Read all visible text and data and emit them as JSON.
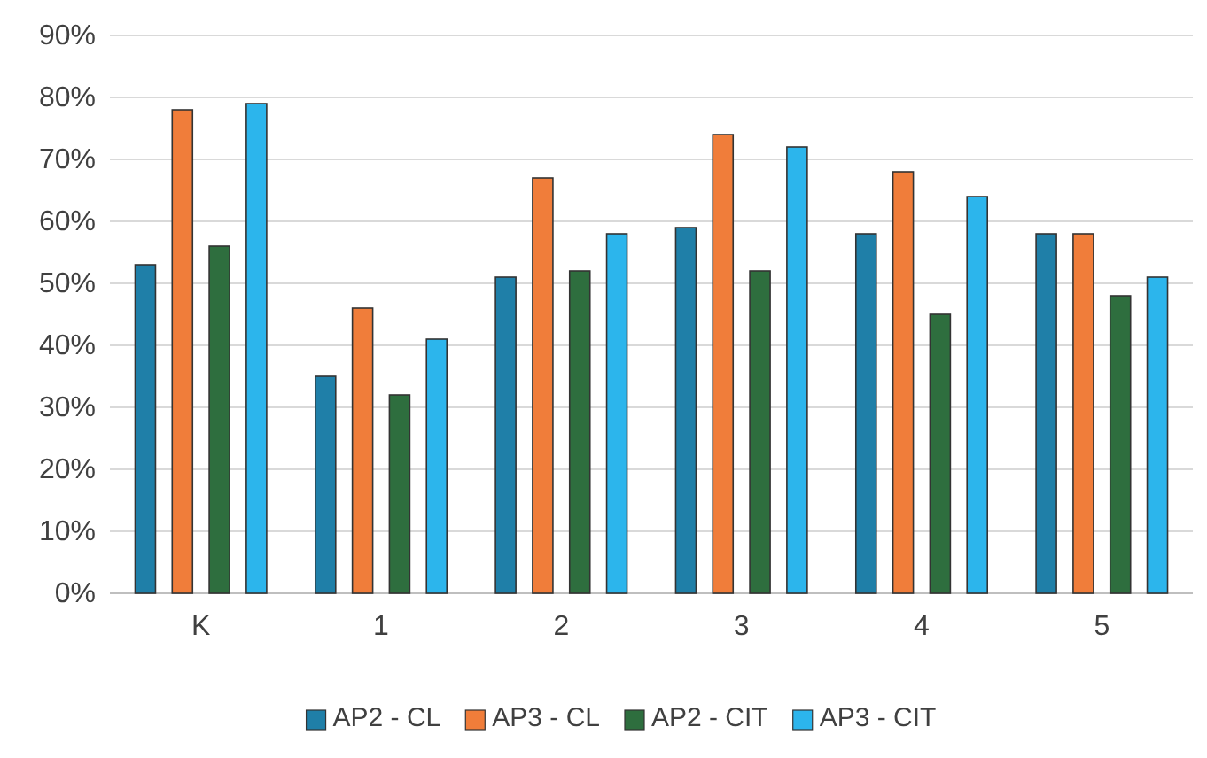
{
  "chart_data": {
    "type": "bar",
    "categories": [
      "K",
      "1",
      "2",
      "3",
      "4",
      "5"
    ],
    "series": [
      {
        "name": "AP2 - CL",
        "color": "#1f7fa8",
        "values": [
          53,
          35,
          51,
          59,
          58,
          58
        ]
      },
      {
        "name": "AP3 - CL",
        "color": "#f07d3a",
        "values": [
          78,
          46,
          67,
          74,
          68,
          58
        ]
      },
      {
        "name": "AP2 - CIT",
        "color": "#2e6e3e",
        "values": [
          56,
          32,
          52,
          52,
          45,
          48
        ]
      },
      {
        "name": "AP3 - CIT",
        "color": "#2cb5ec",
        "values": [
          79,
          41,
          58,
          72,
          64,
          51
        ]
      }
    ],
    "ylim": [
      0,
      90
    ],
    "yticks": [
      {
        "value": 0,
        "label": "0%"
      },
      {
        "value": 10,
        "label": "10%"
      },
      {
        "value": 20,
        "label": "20%"
      },
      {
        "value": 30,
        "label": "30%"
      },
      {
        "value": 40,
        "label": "40%"
      },
      {
        "value": 50,
        "label": "50%"
      },
      {
        "value": 60,
        "label": "60%"
      },
      {
        "value": 70,
        "label": "70%"
      },
      {
        "value": 80,
        "label": "80%"
      },
      {
        "value": 90,
        "label": "90%"
      }
    ],
    "grid": "y",
    "legend": "bottom"
  }
}
